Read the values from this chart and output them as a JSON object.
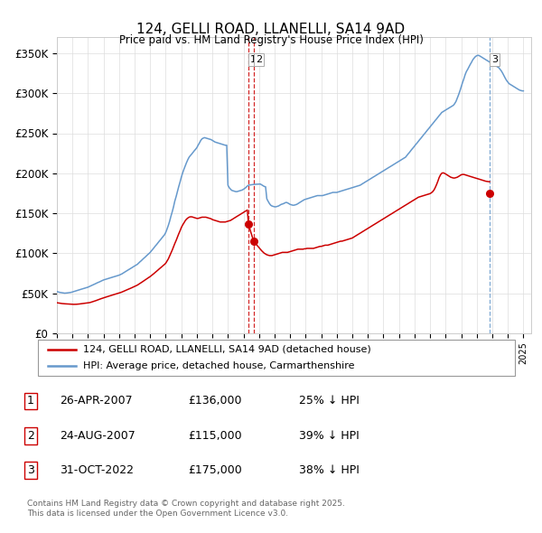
{
  "title": "124, GELLI ROAD, LLANELLI, SA14 9AD",
  "subtitle": "Price paid vs. HM Land Registry's House Price Index (HPI)",
  "ylabel_ticks": [
    "£0",
    "£50K",
    "£100K",
    "£150K",
    "£200K",
    "£250K",
    "£300K",
    "£350K"
  ],
  "ytick_values": [
    0,
    50000,
    100000,
    150000,
    200000,
    250000,
    300000,
    350000
  ],
  "ylim": [
    0,
    370000
  ],
  "xlim_start": 1995.0,
  "xlim_end": 2025.5,
  "red_color": "#cc0000",
  "blue_color": "#6699cc",
  "legend1_label": "124, GELLI ROAD, LLANELLI, SA14 9AD (detached house)",
  "legend2_label": "HPI: Average price, detached house, Carmarthenshire",
  "transactions": [
    {
      "num": 1,
      "date": "26-APR-2007",
      "price": "£136,000",
      "pct": "25%",
      "year": 2007.32,
      "value": 136000
    },
    {
      "num": 2,
      "date": "24-AUG-2007",
      "price": "£115,000",
      "pct": "39%",
      "year": 2007.65,
      "value": 115000
    },
    {
      "num": 3,
      "date": "31-OCT-2022",
      "price": "£175,000",
      "pct": "38%",
      "year": 2022.83,
      "value": 175000
    }
  ],
  "footer": "Contains HM Land Registry data © Crown copyright and database right 2025.\nThis data is licensed under the Open Government Licence v3.0.",
  "hpi_years": [
    1995.0,
    1995.08,
    1995.17,
    1995.25,
    1995.33,
    1995.42,
    1995.5,
    1995.58,
    1995.67,
    1995.75,
    1995.83,
    1995.92,
    1996.0,
    1996.08,
    1996.17,
    1996.25,
    1996.33,
    1996.42,
    1996.5,
    1996.58,
    1996.67,
    1996.75,
    1996.83,
    1996.92,
    1997.0,
    1997.08,
    1997.17,
    1997.25,
    1997.33,
    1997.42,
    1997.5,
    1997.58,
    1997.67,
    1997.75,
    1997.83,
    1997.92,
    1998.0,
    1998.08,
    1998.17,
    1998.25,
    1998.33,
    1998.42,
    1998.5,
    1998.58,
    1998.67,
    1998.75,
    1998.83,
    1998.92,
    1999.0,
    1999.08,
    1999.17,
    1999.25,
    1999.33,
    1999.42,
    1999.5,
    1999.58,
    1999.67,
    1999.75,
    1999.83,
    1999.92,
    2000.0,
    2000.08,
    2000.17,
    2000.25,
    2000.33,
    2000.42,
    2000.5,
    2000.58,
    2000.67,
    2000.75,
    2000.83,
    2000.92,
    2001.0,
    2001.08,
    2001.17,
    2001.25,
    2001.33,
    2001.42,
    2001.5,
    2001.58,
    2001.67,
    2001.75,
    2001.83,
    2001.92,
    2002.0,
    2002.08,
    2002.17,
    2002.25,
    2002.33,
    2002.42,
    2002.5,
    2002.58,
    2002.67,
    2002.75,
    2002.83,
    2002.92,
    2003.0,
    2003.08,
    2003.17,
    2003.25,
    2003.33,
    2003.42,
    2003.5,
    2003.58,
    2003.67,
    2003.75,
    2003.83,
    2003.92,
    2004.0,
    2004.08,
    2004.17,
    2004.25,
    2004.33,
    2004.42,
    2004.5,
    2004.58,
    2004.67,
    2004.75,
    2004.83,
    2004.92,
    2005.0,
    2005.08,
    2005.17,
    2005.25,
    2005.33,
    2005.42,
    2005.5,
    2005.58,
    2005.67,
    2005.75,
    2005.83,
    2005.92,
    2006.0,
    2006.08,
    2006.17,
    2006.25,
    2006.33,
    2006.42,
    2006.5,
    2006.58,
    2006.67,
    2006.75,
    2006.83,
    2006.92,
    2007.0,
    2007.08,
    2007.17,
    2007.25,
    2007.32,
    2007.65,
    2008.0,
    2008.08,
    2008.17,
    2008.25,
    2008.33,
    2008.42,
    2008.5,
    2008.58,
    2008.67,
    2008.75,
    2008.83,
    2008.92,
    2009.0,
    2009.08,
    2009.17,
    2009.25,
    2009.33,
    2009.42,
    2009.5,
    2009.58,
    2009.67,
    2009.75,
    2009.83,
    2009.92,
    2010.0,
    2010.08,
    2010.17,
    2010.25,
    2010.33,
    2010.42,
    2010.5,
    2010.58,
    2010.67,
    2010.75,
    2010.83,
    2010.92,
    2011.0,
    2011.08,
    2011.17,
    2011.25,
    2011.33,
    2011.42,
    2011.5,
    2011.58,
    2011.67,
    2011.75,
    2011.83,
    2011.92,
    2012.0,
    2012.08,
    2012.17,
    2012.25,
    2012.33,
    2012.42,
    2012.5,
    2012.58,
    2012.67,
    2012.75,
    2012.83,
    2012.92,
    2013.0,
    2013.08,
    2013.17,
    2013.25,
    2013.33,
    2013.42,
    2013.5,
    2013.58,
    2013.67,
    2013.75,
    2013.83,
    2013.92,
    2014.0,
    2014.08,
    2014.17,
    2014.25,
    2014.33,
    2014.42,
    2014.5,
    2014.58,
    2014.67,
    2014.75,
    2014.83,
    2014.92,
    2015.0,
    2015.08,
    2015.17,
    2015.25,
    2015.33,
    2015.42,
    2015.5,
    2015.58,
    2015.67,
    2015.75,
    2015.83,
    2015.92,
    2016.0,
    2016.08,
    2016.17,
    2016.25,
    2016.33,
    2016.42,
    2016.5,
    2016.58,
    2016.67,
    2016.75,
    2016.83,
    2016.92,
    2017.0,
    2017.08,
    2017.17,
    2017.25,
    2017.33,
    2017.42,
    2017.5,
    2017.58,
    2017.67,
    2017.75,
    2017.83,
    2017.92,
    2018.0,
    2018.08,
    2018.17,
    2018.25,
    2018.33,
    2018.42,
    2018.5,
    2018.58,
    2018.67,
    2018.75,
    2018.83,
    2018.92,
    2019.0,
    2019.08,
    2019.17,
    2019.25,
    2019.33,
    2019.42,
    2019.5,
    2019.58,
    2019.67,
    2019.75,
    2019.83,
    2019.92,
    2020.0,
    2020.08,
    2020.17,
    2020.25,
    2020.33,
    2020.42,
    2020.5,
    2020.58,
    2020.67,
    2020.75,
    2020.83,
    2020.92,
    2021.0,
    2021.08,
    2021.17,
    2021.25,
    2021.33,
    2021.42,
    2021.5,
    2021.58,
    2021.67,
    2021.75,
    2021.83,
    2021.92,
    2022.0,
    2022.08,
    2022.17,
    2022.25,
    2022.33,
    2022.42,
    2022.5,
    2022.58,
    2022.67,
    2022.75,
    2022.83,
    2022.92,
    2023.0,
    2023.08,
    2023.17,
    2023.25,
    2023.33,
    2023.42,
    2023.5,
    2023.58,
    2023.67,
    2023.75,
    2023.83,
    2023.92,
    2024.0,
    2024.08,
    2024.17,
    2024.25,
    2024.33,
    2024.42,
    2024.5,
    2024.58,
    2024.67,
    2024.75,
    2024.83,
    2024.92,
    2025.0
  ],
  "hpi_values": [
    52000,
    51500,
    51000,
    50800,
    50500,
    50200,
    50000,
    50100,
    50300,
    50500,
    50800,
    51000,
    51500,
    52000,
    52500,
    53000,
    53500,
    54000,
    54500,
    55000,
    55500,
    56000,
    56500,
    57000,
    57500,
    58200,
    59000,
    59800,
    60500,
    61200,
    62000,
    62800,
    63500,
    64200,
    65000,
    65800,
    66500,
    67000,
    67500,
    68000,
    68500,
    69000,
    69500,
    70000,
    70500,
    71000,
    71500,
    72000,
    72500,
    73200,
    74000,
    75000,
    76000,
    77000,
    78000,
    79000,
    80000,
    81000,
    82000,
    83000,
    84000,
    85000,
    86000,
    87500,
    89000,
    90500,
    92000,
    93500,
    95000,
    96500,
    98000,
    99500,
    101000,
    103000,
    105000,
    107000,
    109000,
    111000,
    113000,
    115000,
    117000,
    119000,
    121000,
    123000,
    126000,
    130000,
    135000,
    140000,
    146000,
    152000,
    158000,
    165000,
    171000,
    177000,
    183000,
    189000,
    195000,
    200000,
    205000,
    209000,
    213000,
    217000,
    220000,
    222000,
    224000,
    226000,
    228000,
    230000,
    232000,
    235000,
    238000,
    241000,
    243000,
    244000,
    244500,
    244000,
    243500,
    243000,
    242500,
    242000,
    241000,
    240000,
    239000,
    238500,
    238000,
    237500,
    237000,
    236500,
    236000,
    235500,
    235000,
    235000,
    185000,
    182000,
    180000,
    178500,
    178000,
    177500,
    177000,
    177000,
    177500,
    178000,
    178500,
    179000,
    180000,
    181000,
    182500,
    184000,
    185000,
    186000,
    186500,
    186500,
    185500,
    184500,
    183500,
    183000,
    168000,
    165000,
    162000,
    160000,
    159000,
    158500,
    158000,
    158000,
    158500,
    159000,
    160000,
    161000,
    161500,
    162000,
    163000,
    163500,
    163000,
    162000,
    161000,
    160500,
    160000,
    160000,
    160500,
    161000,
    162000,
    163000,
    164000,
    165000,
    166000,
    167000,
    167500,
    168000,
    168500,
    169000,
    169500,
    170000,
    170500,
    171000,
    171500,
    172000,
    172000,
    172000,
    172000,
    172000,
    172500,
    173000,
    173500,
    174000,
    174500,
    175000,
    175500,
    176000,
    176000,
    176000,
    176000,
    176500,
    177000,
    177500,
    178000,
    178500,
    179000,
    179500,
    180000,
    180500,
    181000,
    181500,
    182000,
    182500,
    183000,
    183500,
    184000,
    184500,
    185000,
    186000,
    187000,
    188000,
    189000,
    190000,
    191000,
    192000,
    193000,
    194000,
    195000,
    196000,
    197000,
    198000,
    199000,
    200000,
    201000,
    202000,
    203000,
    204000,
    205000,
    206000,
    207000,
    208000,
    209000,
    210000,
    211000,
    212000,
    213000,
    214000,
    215000,
    216000,
    217000,
    218000,
    219000,
    220000,
    222000,
    224000,
    226000,
    228000,
    230000,
    232000,
    234000,
    236000,
    238000,
    240000,
    242000,
    244000,
    246000,
    248000,
    250000,
    252000,
    254000,
    256000,
    258000,
    260000,
    262000,
    264000,
    266000,
    268000,
    270000,
    272000,
    274000,
    276000,
    277000,
    278000,
    279000,
    280000,
    281000,
    282000,
    283000,
    284000,
    285000,
    287000,
    290000,
    294000,
    298000,
    303000,
    308000,
    313000,
    318000,
    323000,
    327000,
    330000,
    333000,
    336000,
    339000,
    342000,
    344000,
    346000,
    347000,
    347500,
    347000,
    346000,
    345000,
    344000,
    343000,
    342000,
    341000,
    340000,
    339000,
    338000,
    337000,
    336000,
    335000,
    334000,
    333000,
    332000,
    330000,
    328000,
    325000,
    322000,
    319000,
    316000,
    314000,
    312000,
    311000,
    310000,
    309000,
    308000,
    307000,
    306000,
    305000,
    304000,
    303500,
    303000,
    303000,
    303000,
    304000,
    305000,
    306000,
    307000,
    308000
  ],
  "red_years": [
    1995.0,
    1995.08,
    1995.17,
    1995.25,
    1995.33,
    1995.42,
    1995.5,
    1995.58,
    1995.67,
    1995.75,
    1995.83,
    1995.92,
    1996.0,
    1996.08,
    1996.17,
    1996.25,
    1996.33,
    1996.42,
    1996.5,
    1996.58,
    1996.67,
    1996.75,
    1996.83,
    1996.92,
    1997.0,
    1997.08,
    1997.17,
    1997.25,
    1997.33,
    1997.42,
    1997.5,
    1997.58,
    1997.67,
    1997.75,
    1997.83,
    1997.92,
    1998.0,
    1998.08,
    1998.17,
    1998.25,
    1998.33,
    1998.42,
    1998.5,
    1998.58,
    1998.67,
    1998.75,
    1998.83,
    1998.92,
    1999.0,
    1999.08,
    1999.17,
    1999.25,
    1999.33,
    1999.42,
    1999.5,
    1999.58,
    1999.67,
    1999.75,
    1999.83,
    1999.92,
    2000.0,
    2000.08,
    2000.17,
    2000.25,
    2000.33,
    2000.42,
    2000.5,
    2000.58,
    2000.67,
    2000.75,
    2000.83,
    2000.92,
    2001.0,
    2001.08,
    2001.17,
    2001.25,
    2001.33,
    2001.42,
    2001.5,
    2001.58,
    2001.67,
    2001.75,
    2001.83,
    2001.92,
    2002.0,
    2002.08,
    2002.17,
    2002.25,
    2002.33,
    2002.42,
    2002.5,
    2002.58,
    2002.67,
    2002.75,
    2002.83,
    2002.92,
    2003.0,
    2003.08,
    2003.17,
    2003.25,
    2003.33,
    2003.42,
    2003.5,
    2003.58,
    2003.67,
    2003.75,
    2003.83,
    2003.92,
    2004.0,
    2004.08,
    2004.17,
    2004.25,
    2004.33,
    2004.42,
    2004.5,
    2004.58,
    2004.67,
    2004.75,
    2004.83,
    2004.92,
    2005.0,
    2005.08,
    2005.17,
    2005.25,
    2005.33,
    2005.42,
    2005.5,
    2005.58,
    2005.67,
    2005.75,
    2005.83,
    2005.92,
    2006.0,
    2006.08,
    2006.17,
    2006.25,
    2006.33,
    2006.42,
    2006.5,
    2006.58,
    2006.67,
    2006.75,
    2006.83,
    2006.92,
    2007.0,
    2007.08,
    2007.17,
    2007.25,
    2007.32,
    2007.65,
    2008.0,
    2008.08,
    2008.17,
    2008.25,
    2008.33,
    2008.42,
    2008.5,
    2008.58,
    2008.67,
    2008.75,
    2008.83,
    2008.92,
    2009.0,
    2009.08,
    2009.17,
    2009.25,
    2009.33,
    2009.42,
    2009.5,
    2009.58,
    2009.67,
    2009.75,
    2009.83,
    2009.92,
    2010.0,
    2010.08,
    2010.17,
    2010.25,
    2010.33,
    2010.42,
    2010.5,
    2010.58,
    2010.67,
    2010.75,
    2010.83,
    2010.92,
    2011.0,
    2011.08,
    2011.17,
    2011.25,
    2011.33,
    2011.42,
    2011.5,
    2011.58,
    2011.67,
    2011.75,
    2011.83,
    2011.92,
    2012.0,
    2012.08,
    2012.17,
    2012.25,
    2012.33,
    2012.42,
    2012.5,
    2012.58,
    2012.67,
    2012.75,
    2012.83,
    2012.92,
    2013.0,
    2013.08,
    2013.17,
    2013.25,
    2013.33,
    2013.42,
    2013.5,
    2013.58,
    2013.67,
    2013.75,
    2013.83,
    2013.92,
    2014.0,
    2014.08,
    2014.17,
    2014.25,
    2014.33,
    2014.42,
    2014.5,
    2014.58,
    2014.67,
    2014.75,
    2014.83,
    2014.92,
    2015.0,
    2015.08,
    2015.17,
    2015.25,
    2015.33,
    2015.42,
    2015.5,
    2015.58,
    2015.67,
    2015.75,
    2015.83,
    2015.92,
    2016.0,
    2016.08,
    2016.17,
    2016.25,
    2016.33,
    2016.42,
    2016.5,
    2016.58,
    2016.67,
    2016.75,
    2016.83,
    2016.92,
    2017.0,
    2017.08,
    2017.17,
    2017.25,
    2017.33,
    2017.42,
    2017.5,
    2017.58,
    2017.67,
    2017.75,
    2017.83,
    2017.92,
    2018.0,
    2018.08,
    2018.17,
    2018.25,
    2018.33,
    2018.42,
    2018.5,
    2018.58,
    2018.67,
    2018.75,
    2018.83,
    2018.92,
    2019.0,
    2019.08,
    2019.17,
    2019.25,
    2019.33,
    2019.42,
    2019.5,
    2019.58,
    2019.67,
    2019.75,
    2019.83,
    2019.92,
    2020.0,
    2020.08,
    2020.17,
    2020.25,
    2020.33,
    2020.42,
    2020.5,
    2020.58,
    2020.67,
    2020.75,
    2020.83,
    2020.92,
    2021.0,
    2021.08,
    2021.17,
    2021.25,
    2021.33,
    2021.42,
    2021.5,
    2021.58,
    2021.67,
    2021.75,
    2021.83,
    2021.92,
    2022.0,
    2022.08,
    2022.17,
    2022.25,
    2022.33,
    2022.42,
    2022.5,
    2022.58,
    2022.67,
    2022.75,
    2022.83
  ],
  "red_values": [
    38000,
    37800,
    37500,
    37200,
    37000,
    36800,
    36700,
    36600,
    36500,
    36400,
    36300,
    36200,
    36100,
    36000,
    36000,
    36100,
    36200,
    36400,
    36600,
    36800,
    37000,
    37200,
    37400,
    37600,
    37800,
    38100,
    38500,
    39000,
    39500,
    40000,
    40600,
    41200,
    41800,
    42400,
    43000,
    43600,
    44200,
    44700,
    45200,
    45700,
    46200,
    46700,
    47200,
    47700,
    48200,
    48700,
    49200,
    49700,
    50200,
    50700,
    51300,
    52000,
    52700,
    53400,
    54100,
    54800,
    55500,
    56200,
    56900,
    57600,
    58300,
    59100,
    60000,
    61000,
    62000,
    63100,
    64200,
    65300,
    66400,
    67500,
    68600,
    69700,
    70800,
    72000,
    73300,
    74700,
    76100,
    77500,
    78900,
    80300,
    81700,
    83100,
    84500,
    85900,
    87500,
    90000,
    93000,
    96500,
    100000,
    104000,
    108000,
    112000,
    116000,
    120000,
    124000,
    128000,
    132000,
    135000,
    138000,
    140500,
    142500,
    144000,
    145000,
    145500,
    145500,
    145000,
    144500,
    144000,
    143500,
    143500,
    144000,
    144500,
    145000,
    145000,
    145000,
    145000,
    144500,
    144000,
    143500,
    143000,
    142000,
    141500,
    141000,
    140500,
    140000,
    139500,
    139000,
    139000,
    139000,
    139000,
    139000,
    139500,
    140000,
    140500,
    141000,
    142000,
    143000,
    144000,
    145000,
    146000,
    147000,
    148000,
    149000,
    150000,
    151000,
    152000,
    153000,
    154000,
    136000,
    115000,
    107000,
    105000,
    103000,
    101500,
    100000,
    99000,
    98000,
    97500,
    97000,
    97000,
    97000,
    97500,
    98000,
    98500,
    99000,
    99500,
    100000,
    100500,
    101000,
    101000,
    101000,
    101000,
    101000,
    101500,
    102000,
    102500,
    103000,
    103500,
    104000,
    104500,
    105000,
    105000,
    105000,
    105000,
    105000,
    105500,
    105500,
    106000,
    106000,
    106000,
    106000,
    106000,
    106000,
    106500,
    107000,
    107500,
    108000,
    108500,
    108500,
    109000,
    109500,
    110000,
    110000,
    110000,
    110500,
    111000,
    111500,
    112000,
    112500,
    113000,
    113500,
    114000,
    114500,
    115000,
    115000,
    115500,
    116000,
    116500,
    117000,
    117500,
    118000,
    118500,
    119000,
    120000,
    121000,
    122000,
    123000,
    124000,
    125000,
    126000,
    127000,
    128000,
    129000,
    130000,
    131000,
    132000,
    133000,
    134000,
    135000,
    136000,
    137000,
    138000,
    139000,
    140000,
    141000,
    142000,
    143000,
    144000,
    145000,
    146000,
    147000,
    148000,
    149000,
    150000,
    151000,
    152000,
    153000,
    154000,
    155000,
    156000,
    157000,
    158000,
    159000,
    160000,
    161000,
    162000,
    163000,
    164000,
    165000,
    166000,
    167000,
    168000,
    169000,
    170000,
    170500,
    171000,
    171500,
    172000,
    172500,
    173000,
    173500,
    174000,
    174500,
    175500,
    177000,
    179000,
    182000,
    186000,
    190000,
    194500,
    198000,
    200000,
    200500,
    200000,
    199000,
    198000,
    197000,
    196000,
    195000,
    194500,
    194000,
    194000,
    194500,
    195000,
    196000,
    197000,
    198000,
    198500,
    198500,
    198000,
    197500,
    197000,
    196500,
    196000,
    195500,
    195000,
    194500,
    194000,
    193500,
    193000,
    192500,
    192000,
    191500,
    191000,
    190500,
    190000,
    189700,
    189500,
    189300,
    189200,
    189100,
    189100,
    189200,
    189300,
    189500,
    189700,
    190000,
    190200,
    190400,
    190500,
    190400,
    190300,
    190000,
    189700,
    189400,
    189200,
    189000,
    188900,
    188900,
    189000,
    189200,
    189500,
    175000
  ]
}
